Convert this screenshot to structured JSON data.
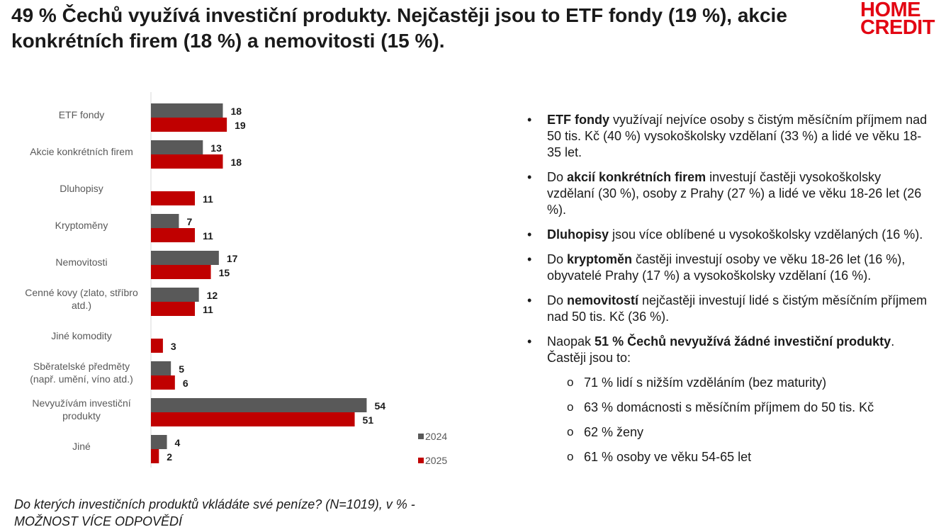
{
  "title": "49 % Čechů využívá investiční produkty. Nejčastěji jsou to ETF fondy (19 %), akcie konkrétních firem (18 %) a nemovitosti (15 %).",
  "logo": {
    "line1": "HOME",
    "line2": "CREDIT"
  },
  "colors": {
    "series_2024": "#595959",
    "series_2025": "#c00000",
    "brand": "#e30613"
  },
  "chart_data": {
    "type": "bar",
    "orientation": "horizontal",
    "categories": [
      [
        "ETF fondy"
      ],
      [
        "Akcie konkrétních firem"
      ],
      [
        "Dluhopisy"
      ],
      [
        "Kryptoměny"
      ],
      [
        "Nemovitosti"
      ],
      [
        "Cenné kovy (zlato, stříbro",
        "atd.)"
      ],
      [
        "Jiné komodity"
      ],
      [
        "Sběratelské předměty",
        "(např. umění, víno atd.)"
      ],
      [
        "Nevyužívám investiční",
        "produkty"
      ],
      [
        "Jiné"
      ]
    ],
    "series": [
      {
        "name": "2024",
        "values": [
          18,
          13,
          null,
          7,
          17,
          12,
          null,
          5,
          54,
          4
        ]
      },
      {
        "name": "2025",
        "values": [
          19,
          18,
          11,
          11,
          15,
          11,
          3,
          6,
          51,
          2
        ]
      }
    ],
    "xlim": [
      0,
      60
    ],
    "legend": "bottom-right"
  },
  "footnote": {
    "line1": "Do kterých investičních produktů vkládáte své peníze? (N=1019), v % -",
    "line2": "MOŽNOST VÍCE ODPOVĚDÍ"
  },
  "notes": {
    "b1": {
      "bold": "ETF fondy",
      "rest": " využívají nejvíce osoby s čistým měsíčním příjmem nad 50 tis. Kč (40 %) vysokoškolsky vzdělaní (33 %) a lidé ve věku 18-35 let."
    },
    "b2": {
      "pre": "Do ",
      "bold": "akcií konkrétních firem",
      "rest": " investují častěji vysokoškolsky vzdělaní (30 %), osoby z Prahy (27 %) a lidé ve věku 18-26 let (26 %)."
    },
    "b3": {
      "bold": "Dluhopisy",
      "rest": " jsou více oblíbené u vysokoškolsky vzdělaných (16 %)."
    },
    "b4": {
      "pre": "Do ",
      "bold": "kryptoměn",
      "rest": " častěji investují osoby ve věku 18-26 let (16 %), obyvatelé Prahy (17 %) a vysokoškolsky vzdělaní (16 %)."
    },
    "b5": {
      "pre": "Do ",
      "bold": "nemovitostí",
      "rest": " nejčastěji investují lidé s čistým měsíčním příjmem nad 50 tis. Kč (36 %)."
    },
    "b6": {
      "pre": "Naopak ",
      "bold": "51 % Čechů nevyužívá žádné investiční produkty",
      "rest": ". Častěji jsou to:"
    },
    "sub": [
      "71 % lidí s nižším vzděláním (bez maturity)",
      "63 % domácnosti s měsíčním příjmem do 50 tis. Kč",
      "62 % ženy",
      "61 % osoby ve věku 54-65 let"
    ]
  }
}
